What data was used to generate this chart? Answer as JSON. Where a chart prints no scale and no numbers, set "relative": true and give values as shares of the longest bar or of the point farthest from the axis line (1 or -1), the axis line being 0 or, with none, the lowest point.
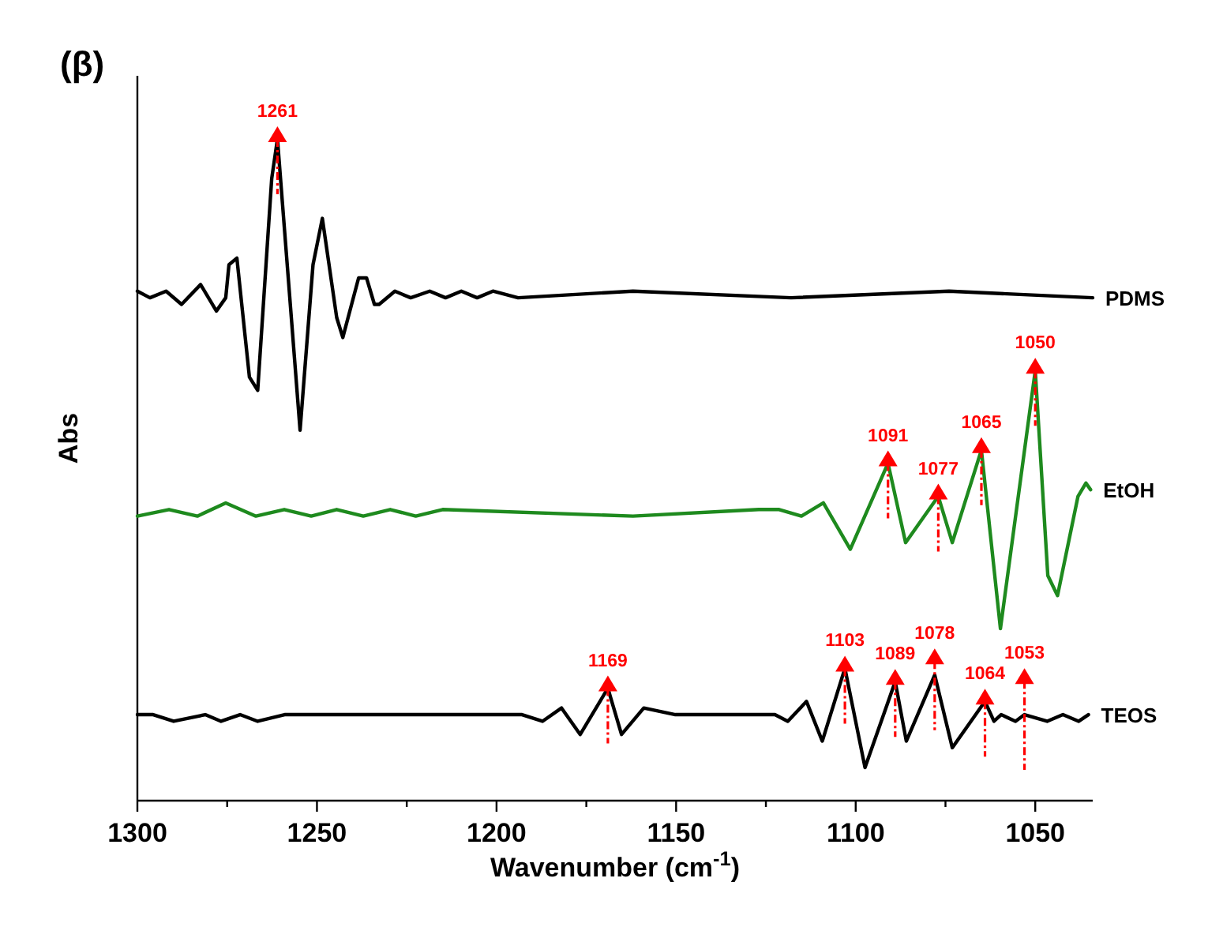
{
  "chart_data": {
    "type": "line",
    "title": "(β)",
    "xlabel": "Wavenumber (cm$^{-1}$)",
    "ylabel": "Abs",
    "relative": true,
    "legend": false,
    "grid": false,
    "marker": "none",
    "line_style": "solid",
    "xlim": [
      1300,
      1034
    ],
    "xticks": [
      1300,
      {
        "value": 1275,
        "label": null
      },
      1250,
      {
        "value": 1225,
        "label": null
      },
      1200,
      {
        "value": 1175,
        "label": null
      },
      1150,
      {
        "value": 1125,
        "label": null
      },
      1100,
      {
        "value": 1075,
        "label": null
      },
      1050
    ],
    "series": [
      {
        "name": "PDMS",
        "color": "#000000",
        "x": [
          1300,
          1296.5,
          1292,
          1287.7,
          1282.4,
          1278,
          1275.4,
          1274.5,
          1272.3,
          1268.8,
          1266.5,
          1262.6,
          1261,
          1254.7,
          1251.1,
          1248.5,
          1244.5,
          1242.8,
          1238.4,
          1236.2,
          1234,
          1232.7,
          1228.3,
          1223.9,
          1218.6,
          1214.2,
          1209.8,
          1205.4,
          1201,
          1194,
          1162,
          1118,
          1074,
          1034
        ],
        "values": [
          0.77,
          0.76,
          0.77,
          0.75,
          0.78,
          0.74,
          0.76,
          0.81,
          0.82,
          0.64,
          0.62,
          0.94,
          1,
          0.56,
          0.81,
          0.88,
          0.73,
          0.7,
          0.79,
          0.79,
          0.75,
          0.75,
          0.77,
          0.76,
          0.77,
          0.76,
          0.77,
          0.76,
          0.77,
          0.76,
          0.77,
          0.76,
          0.77,
          0.76
        ]
      },
      {
        "name": "EtOH",
        "color": "#1e8a1e",
        "x": [
          1300,
          1291.2,
          1283.3,
          1275.4,
          1267,
          1259.1,
          1251.6,
          1244.5,
          1237.1,
          1229.6,
          1222.5,
          1215,
          1162,
          1127,
          1121.3,
          1115.1,
          1109,
          1101.5,
          1091,
          1086.1,
          1077,
          1073.1,
          1065,
          1059.7,
          1050,
          1046.5,
          1043.8,
          1038.1,
          1035.9,
          1034.6
        ],
        "values": [
          0.43,
          0.44,
          0.43,
          0.45,
          0.43,
          0.44,
          0.43,
          0.44,
          0.43,
          0.44,
          0.43,
          0.44,
          0.43,
          0.44,
          0.44,
          0.43,
          0.45,
          0.38,
          0.51,
          0.39,
          0.46,
          0.39,
          0.53,
          0.26,
          0.65,
          0.34,
          0.31,
          0.46,
          0.48,
          0.47
        ]
      },
      {
        "name": "TEOS",
        "color": "#000000",
        "x": [
          1300,
          1295.6,
          1289.9,
          1281.1,
          1276.7,
          1271.4,
          1266.5,
          1259,
          1247.1,
          1192.9,
          1187.2,
          1181.9,
          1176.7,
          1169,
          1165.2,
          1159,
          1150.2,
          1141.4,
          1131.3,
          1122.5,
          1118.9,
          1113.7,
          1109.3,
          1103,
          1097.4,
          1089,
          1085.9,
          1078,
          1073.1,
          1064,
          1061.5,
          1059.5,
          1055.5,
          1053,
          1046.7,
          1042.3,
          1037.9,
          1035.2
        ],
        "values": [
          0.13,
          0.13,
          0.12,
          0.13,
          0.12,
          0.13,
          0.12,
          0.13,
          0.13,
          0.13,
          0.12,
          0.14,
          0.1,
          0.17,
          0.1,
          0.14,
          0.13,
          0.13,
          0.13,
          0.13,
          0.12,
          0.15,
          0.09,
          0.2,
          0.05,
          0.18,
          0.09,
          0.19,
          0.08,
          0.15,
          0.12,
          0.13,
          0.12,
          0.13,
          0.12,
          0.13,
          0.12,
          0.13
        ]
      }
    ],
    "annotations": [
      {
        "text": "1261",
        "x": 1261,
        "y": 1
      },
      {
        "text": "1091",
        "x": 1091,
        "y": 0.51
      },
      {
        "text": "1077",
        "x": 1077,
        "y": 0.46
      },
      {
        "text": "1065",
        "x": 1065,
        "y": 0.53
      },
      {
        "text": "1050",
        "x": 1050,
        "y": 0.65
      },
      {
        "text": "1169",
        "x": 1169,
        "y": 0.17
      },
      {
        "text": "1103",
        "x": 1103,
        "y": 0.2
      },
      {
        "text": "1089",
        "x": 1089,
        "y": 0.18
      },
      {
        "text": "1078",
        "x": 1078,
        "y": 0.19
      },
      {
        "text": "1064",
        "x": 1064,
        "y": 0.15
      },
      {
        "text": "1053",
        "x": 1053,
        "y": 0.13
      }
    ]
  }
}
